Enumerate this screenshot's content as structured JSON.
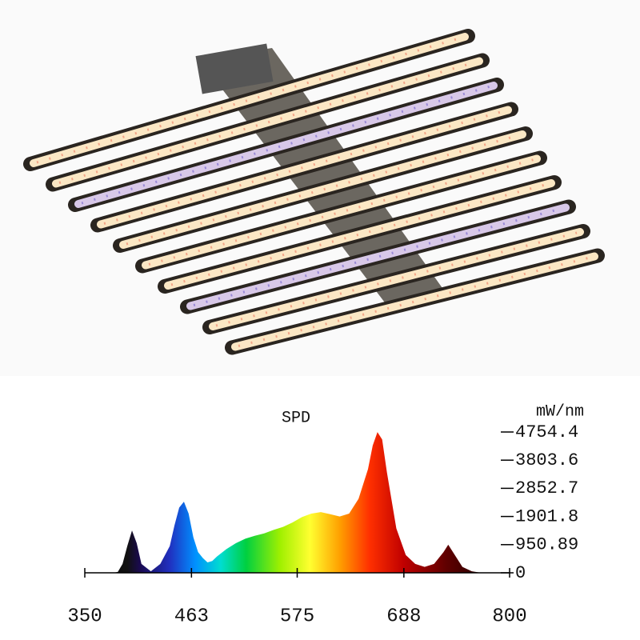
{
  "chart_data": {
    "type": "area",
    "title": "SPD",
    "y_label": "mW/nm",
    "x": [
      350,
      380,
      385,
      390,
      395,
      400,
      405,
      410,
      420,
      430,
      440,
      445,
      450,
      455,
      460,
      465,
      470,
      475,
      480,
      485,
      490,
      500,
      510,
      520,
      530,
      540,
      550,
      560,
      570,
      580,
      590,
      600,
      610,
      620,
      630,
      640,
      650,
      655,
      660,
      665,
      670,
      680,
      690,
      700,
      710,
      720,
      730,
      735,
      740,
      750,
      760,
      770,
      800
    ],
    "values": [
      0,
      0,
      30,
      300,
      900,
      1430,
      1000,
      300,
      50,
      300,
      900,
      1600,
      2200,
      2400,
      2000,
      1200,
      700,
      500,
      350,
      400,
      550,
      800,
      1000,
      1150,
      1250,
      1330,
      1450,
      1550,
      1700,
      1880,
      2000,
      2050,
      1980,
      1900,
      2000,
      2500,
      3500,
      4300,
      4750,
      4500,
      3400,
      1500,
      600,
      300,
      200,
      300,
      700,
      950,
      700,
      200,
      50,
      0,
      0
    ],
    "xlim": [
      350,
      800
    ],
    "xticks": [
      350,
      463,
      575,
      688,
      800
    ],
    "ylim": [
      0,
      4754.4
    ],
    "yticks": [
      0,
      950.89,
      1901.8,
      2852.7,
      3803.6,
      4754.4
    ]
  }
}
